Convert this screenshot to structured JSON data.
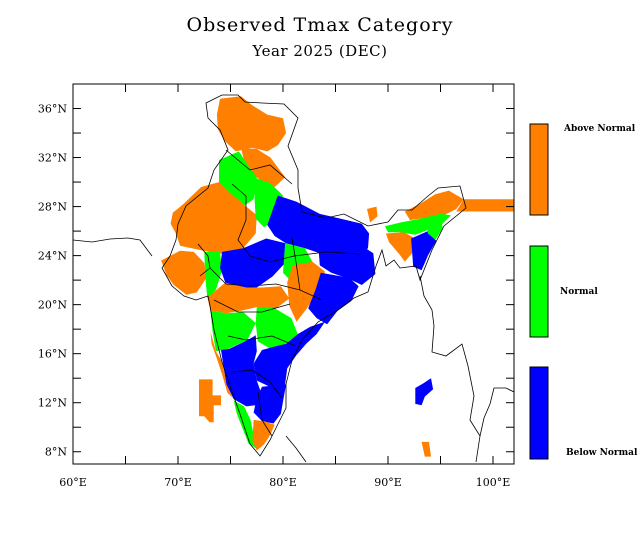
{
  "title": "Observed Tmax Category",
  "subtitle": "Year 2025 (DEC)",
  "colors": {
    "above": "#ff7f00",
    "normal": "#00ff00",
    "below": "#0000ff",
    "frame": "#000000",
    "border": "#000000"
  },
  "axes": {
    "lon_range": [
      60,
      102
    ],
    "lat_range": [
      7,
      38
    ],
    "lon_ticks": [
      {
        "value": 60,
        "label": "60°E"
      },
      {
        "value": 70,
        "label": "70°E"
      },
      {
        "value": 80,
        "label": "80°E"
      },
      {
        "value": 90,
        "label": "90°E"
      },
      {
        "value": 100,
        "label": "100°E"
      }
    ],
    "lat_ticks": [
      {
        "value": 36,
        "label": "36°N"
      },
      {
        "value": 32,
        "label": "32°N"
      },
      {
        "value": 28,
        "label": "28°N"
      },
      {
        "value": 24,
        "label": "24°N"
      },
      {
        "value": 20,
        "label": "20°N"
      },
      {
        "value": 16,
        "label": "16°N"
      },
      {
        "value": 12,
        "label": "12°N"
      },
      {
        "value": 8,
        "label": "8°N"
      }
    ]
  },
  "legend": [
    {
      "label": "Above Normal",
      "color": "#ff7f00"
    },
    {
      "label": "Normal",
      "color": "#00ff00"
    },
    {
      "label": "Below Normal",
      "color": "#0000ff"
    }
  ],
  "regions": [
    {
      "name": "Jammu & Kashmir / Ladakh",
      "category": "above",
      "poly": [
        [
          74,
          36.8
        ],
        [
          76,
          37
        ],
        [
          77,
          36.3
        ],
        [
          78.5,
          35.5
        ],
        [
          80,
          35.2
        ],
        [
          80.3,
          34
        ],
        [
          79.5,
          33
        ],
        [
          78.5,
          32.5
        ],
        [
          77,
          32.8
        ],
        [
          75.5,
          32.5
        ],
        [
          74.5,
          33.3
        ],
        [
          73.8,
          34.3
        ],
        [
          73.7,
          35.5
        ]
      ]
    },
    {
      "name": "Himachal / Uttarakhand",
      "category": "above",
      "poly": [
        [
          76,
          32.8
        ],
        [
          77.5,
          32.7
        ],
        [
          78.8,
          32
        ],
        [
          80.2,
          30.4
        ],
        [
          79.2,
          29.6
        ],
        [
          77.8,
          30.2
        ],
        [
          76.5,
          31
        ]
      ]
    },
    {
      "name": "Punjab / Haryana",
      "category": "normal",
      "poly": [
        [
          73.9,
          31.8
        ],
        [
          75.8,
          32.5
        ],
        [
          76.8,
          31.2
        ],
        [
          77.5,
          30.4
        ],
        [
          77.2,
          28.6
        ],
        [
          76,
          27.9
        ],
        [
          74.6,
          29
        ],
        [
          73.9,
          30
        ]
      ]
    },
    {
      "name": "Rajasthan / Gujarat West",
      "category": "above",
      "poly": [
        [
          69.5,
          27.5
        ],
        [
          70.5,
          28.2
        ],
        [
          72.2,
          29.6
        ],
        [
          73.9,
          30
        ],
        [
          75,
          29.1
        ],
        [
          76.5,
          28
        ],
        [
          77.5,
          27.3
        ],
        [
          77.4,
          25.8
        ],
        [
          76.2,
          24.6
        ],
        [
          74.5,
          24.1
        ],
        [
          73,
          24.3
        ],
        [
          71.3,
          24.6
        ],
        [
          70.2,
          24.8
        ],
        [
          69.8,
          25.8
        ],
        [
          69.3,
          26.6
        ]
      ]
    },
    {
      "name": "Kutch / Saurashtra",
      "category": "above",
      "poly": [
        [
          68.4,
          23.6
        ],
        [
          70.2,
          24.4
        ],
        [
          71.5,
          24.3
        ],
        [
          72.5,
          23.4
        ],
        [
          72.7,
          22.2
        ],
        [
          71.8,
          21
        ],
        [
          70.8,
          20.8
        ],
        [
          69.6,
          21.6
        ],
        [
          68.9,
          22.4
        ]
      ]
    },
    {
      "name": "Gujarat East",
      "category": "normal",
      "poly": [
        [
          72.5,
          24.3
        ],
        [
          74,
          24.3
        ],
        [
          74.2,
          22.8
        ],
        [
          73.6,
          21.2
        ],
        [
          72.8,
          20.5
        ],
        [
          72.6,
          22.2
        ]
      ]
    },
    {
      "name": "Uttar Pradesh West",
      "category": "normal",
      "poly": [
        [
          77.2,
          30.4
        ],
        [
          78.8,
          29.9
        ],
        [
          80,
          28.9
        ],
        [
          79.5,
          27.2
        ],
        [
          78.2,
          26.3
        ],
        [
          77.4,
          27
        ],
        [
          77.3,
          28.6
        ]
      ]
    },
    {
      "name": "Uttar Pradesh / Bihar",
      "category": "below",
      "poly": [
        [
          79.5,
          28.9
        ],
        [
          81.3,
          28.4
        ],
        [
          83.5,
          27.4
        ],
        [
          85.5,
          27
        ],
        [
          87.5,
          26.6
        ],
        [
          88.2,
          25.8
        ],
        [
          88.1,
          24.6
        ],
        [
          86.8,
          23.8
        ],
        [
          85.2,
          23.9
        ],
        [
          83.5,
          24.2
        ],
        [
          82.1,
          24.6
        ],
        [
          80.3,
          25
        ],
        [
          79.2,
          25.6
        ],
        [
          78.5,
          26.5
        ]
      ]
    },
    {
      "name": "Madhya Pradesh West",
      "category": "below",
      "poly": [
        [
          74.2,
          24.3
        ],
        [
          76.2,
          24.6
        ],
        [
          78.4,
          25.4
        ],
        [
          80.3,
          25
        ],
        [
          80.2,
          23.4
        ],
        [
          79,
          22.3
        ],
        [
          77.5,
          21.4
        ],
        [
          76,
          21.2
        ],
        [
          74.5,
          21.8
        ],
        [
          74,
          23
        ]
      ]
    },
    {
      "name": "Madhya Pradesh East",
      "category": "normal",
      "poly": [
        [
          80.2,
          25
        ],
        [
          82.1,
          24.6
        ],
        [
          82.8,
          23.5
        ],
        [
          82.3,
          22.3
        ],
        [
          80.9,
          21.8
        ],
        [
          80,
          22.6
        ]
      ]
    },
    {
      "name": "Jharkhand / West Bengal",
      "category": "below",
      "poly": [
        [
          83.4,
          24.4
        ],
        [
          85.3,
          24.8
        ],
        [
          87.5,
          24.8
        ],
        [
          88.6,
          24.2
        ],
        [
          88.8,
          22.5
        ],
        [
          87.5,
          21.6
        ],
        [
          86.3,
          22.1
        ],
        [
          84.6,
          22.6
        ],
        [
          83.5,
          23.2
        ]
      ]
    },
    {
      "name": "Chhattisgarh",
      "category": "above",
      "poly": [
        [
          80.9,
          23.2
        ],
        [
          82.8,
          23.5
        ],
        [
          84,
          22.7
        ],
        [
          83.5,
          21.3
        ],
        [
          82.2,
          19.6
        ],
        [
          81.3,
          18.6
        ],
        [
          80.6,
          19.9
        ],
        [
          80.4,
          21.8
        ]
      ]
    },
    {
      "name": "Odisha",
      "category": "below",
      "poly": [
        [
          83.6,
          22.6
        ],
        [
          86.3,
          22.2
        ],
        [
          87.2,
          21.5
        ],
        [
          86.5,
          20.3
        ],
        [
          85.2,
          19.5
        ],
        [
          84.2,
          18.4
        ],
        [
          83.2,
          18.9
        ],
        [
          82.4,
          19.7
        ],
        [
          83.1,
          21.2
        ]
      ]
    },
    {
      "name": "Maharashtra North",
      "category": "above",
      "poly": [
        [
          72.8,
          20.6
        ],
        [
          74.5,
          21.8
        ],
        [
          76.5,
          21.4
        ],
        [
          78,
          21.4
        ],
        [
          79.8,
          21.5
        ],
        [
          80.6,
          20.5
        ],
        [
          79.2,
          19.6
        ],
        [
          77.5,
          19.8
        ],
        [
          76,
          19.5
        ],
        [
          74.6,
          19.3
        ],
        [
          73.1,
          19.5
        ]
      ]
    },
    {
      "name": "Maharashtra South",
      "category": "normal",
      "poly": [
        [
          73.1,
          19.5
        ],
        [
          74.6,
          19.3
        ],
        [
          76.2,
          19.4
        ],
        [
          77.4,
          18.5
        ],
        [
          76.6,
          17.1
        ],
        [
          74.8,
          16.4
        ],
        [
          73.6,
          16.2
        ],
        [
          73.3,
          17.8
        ]
      ]
    },
    {
      "name": "Telangana",
      "category": "normal",
      "poly": [
        [
          77.5,
          19.8
        ],
        [
          79.2,
          19.7
        ],
        [
          80.8,
          18.9
        ],
        [
          81.4,
          17.6
        ],
        [
          80.3,
          16.8
        ],
        [
          78.8,
          16.4
        ],
        [
          77.6,
          17
        ],
        [
          77.4,
          18.5
        ]
      ]
    },
    {
      "name": "Andhra Pradesh",
      "category": "below",
      "poly": [
        [
          80.3,
          16.8
        ],
        [
          81.4,
          17.6
        ],
        [
          82.6,
          18.2
        ],
        [
          84,
          18.6
        ],
        [
          83.2,
          17.6
        ],
        [
          82.2,
          16.8
        ],
        [
          81.3,
          15.9
        ],
        [
          80.4,
          14.8
        ],
        [
          80.2,
          13.5
        ],
        [
          79,
          13.2
        ],
        [
          77.5,
          13.8
        ],
        [
          77.2,
          15.2
        ],
        [
          78,
          16.3
        ],
        [
          79.3,
          16.6
        ]
      ]
    },
    {
      "name": "Karnataka",
      "category": "below",
      "poly": [
        [
          74.1,
          16.3
        ],
        [
          74.9,
          16.4
        ],
        [
          76.6,
          17.1
        ],
        [
          77.4,
          17.5
        ],
        [
          77.5,
          16.2
        ],
        [
          77.2,
          15.2
        ],
        [
          77.5,
          13.8
        ],
        [
          78,
          12.6
        ],
        [
          77.4,
          11.8
        ],
        [
          76.5,
          11.7
        ],
        [
          75.3,
          12.3
        ],
        [
          74.6,
          13.5
        ],
        [
          74.4,
          14.6
        ]
      ]
    },
    {
      "name": "Goa / Konkan coast",
      "category": "above",
      "poly": [
        [
          73.1,
          17.8
        ],
        [
          73.6,
          16.2
        ],
        [
          74.1,
          15.5
        ],
        [
          74.4,
          14.6
        ],
        [
          74.6,
          13.5
        ],
        [
          75.2,
          12.4
        ],
        [
          74.7,
          12.8
        ],
        [
          74.2,
          14.3
        ],
        [
          73.7,
          15.6
        ],
        [
          73.2,
          16.8
        ]
      ]
    },
    {
      "name": "Tamil Nadu North",
      "category": "below",
      "poly": [
        [
          78,
          13.3
        ],
        [
          80.3,
          13.5
        ],
        [
          80,
          12.1
        ],
        [
          79.8,
          11.1
        ],
        [
          79.1,
          10.3
        ],
        [
          78,
          10.5
        ],
        [
          77.2,
          11.2
        ],
        [
          77.5,
          12.4
        ]
      ]
    },
    {
      "name": "Kerala",
      "category": "normal",
      "poly": [
        [
          75.3,
          12.2
        ],
        [
          76.3,
          11.7
        ],
        [
          76.9,
          10.6
        ],
        [
          77.2,
          9.4
        ],
        [
          77.4,
          8.3
        ],
        [
          76.7,
          8.7
        ],
        [
          76.2,
          9.8
        ],
        [
          75.6,
          11.1
        ]
      ]
    },
    {
      "name": "Tamil Nadu South",
      "category": "above",
      "poly": [
        [
          77.2,
          10.6
        ],
        [
          78.2,
          10.5
        ],
        [
          79.2,
          10.2
        ],
        [
          78.8,
          9.4
        ],
        [
          78.2,
          8.6
        ],
        [
          77.5,
          8.1
        ],
        [
          77.1,
          8.9
        ]
      ]
    },
    {
      "name": "Sikkim / Bhutan foothills",
      "category": "above",
      "poly": [
        [
          88,
          27.8
        ],
        [
          88.9,
          28
        ],
        [
          89,
          27.2
        ],
        [
          88.3,
          26.7
        ]
      ]
    },
    {
      "name": "Arunachal Pradesh",
      "category": "above",
      "poly": [
        [
          91.6,
          27.6
        ],
        [
          93,
          28.2
        ],
        [
          94.5,
          29
        ],
        [
          95.8,
          29.3
        ],
        [
          97.2,
          28.6
        ],
        [
          96.5,
          27.8
        ],
        [
          95.1,
          27.2
        ],
        [
          93.6,
          27.1
        ],
        [
          92.1,
          26.9
        ]
      ]
    },
    {
      "name": "Arunachal east strip",
      "category": "above",
      "poly": [
        [
          97.2,
          28.6
        ],
        [
          102,
          28.6
        ],
        [
          102,
          27.6
        ],
        [
          96.5,
          27.6
        ]
      ]
    },
    {
      "name": "Assam",
      "category": "normal",
      "poly": [
        [
          89.7,
          26.4
        ],
        [
          91.2,
          26.7
        ],
        [
          93,
          27
        ],
        [
          95,
          27.4
        ],
        [
          96,
          27.3
        ],
        [
          95.2,
          26.6
        ],
        [
          93.8,
          26.1
        ],
        [
          92.6,
          25.7
        ],
        [
          91.1,
          25.9
        ],
        [
          90,
          25.9
        ]
      ]
    },
    {
      "name": "Meghalaya / Tripura",
      "category": "above",
      "poly": [
        [
          89.8,
          25.8
        ],
        [
          91.5,
          25.9
        ],
        [
          92.4,
          25.5
        ],
        [
          92.3,
          24.2
        ],
        [
          91.6,
          23.5
        ],
        [
          91.1,
          24.1
        ],
        [
          90.1,
          25.1
        ]
      ]
    },
    {
      "name": "Mizoram / Manipur",
      "category": "below",
      "poly": [
        [
          92.2,
          25.4
        ],
        [
          93.8,
          26
        ],
        [
          94.6,
          25.2
        ],
        [
          93.8,
          24
        ],
        [
          93.2,
          22.8
        ],
        [
          92.4,
          23.1
        ]
      ]
    },
    {
      "name": "Nagaland",
      "category": "normal",
      "poly": [
        [
          93.7,
          26.6
        ],
        [
          95.1,
          27.1
        ],
        [
          95.2,
          26.2
        ],
        [
          94.5,
          25.3
        ],
        [
          93.8,
          25.8
        ]
      ]
    },
    {
      "name": "Lakshadweep",
      "category": "above",
      "poly": [
        [
          72,
          13.9
        ],
        [
          73.3,
          13.9
        ],
        [
          73.3,
          12.6
        ],
        [
          74.1,
          12.6
        ],
        [
          74.1,
          11.8
        ],
        [
          73.4,
          11.8
        ],
        [
          73.4,
          10.4
        ],
        [
          73,
          10.4
        ],
        [
          72.5,
          10.9
        ],
        [
          72,
          10.9
        ]
      ]
    },
    {
      "name": "Andaman Islands",
      "category": "below",
      "poly": [
        [
          92.6,
          13.2
        ],
        [
          93.4,
          13.6
        ],
        [
          94.1,
          14
        ],
        [
          94.3,
          13.1
        ],
        [
          93.5,
          12.5
        ],
        [
          93.2,
          11.8
        ],
        [
          92.6,
          11.9
        ]
      ]
    },
    {
      "name": "Nicobar Islands",
      "category": "above",
      "poly": [
        [
          93.2,
          8.8
        ],
        [
          93.9,
          8.8
        ],
        [
          94.1,
          7.6
        ],
        [
          93.5,
          7.6
        ]
      ]
    }
  ]
}
